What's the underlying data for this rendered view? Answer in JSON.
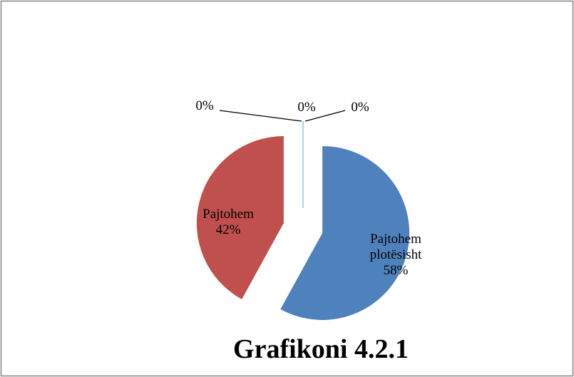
{
  "chart_data": {
    "type": "pie",
    "title": "Grafikoni 4.2.1",
    "categories": [
      "Pajtohem plotësisht",
      "Pajtohem",
      null,
      null,
      null
    ],
    "values": [
      58,
      42,
      0,
      0,
      0
    ],
    "value_labels": [
      "58%",
      "42%",
      "0%",
      "0%",
      "0%"
    ],
    "colors": [
      "#4f81bd",
      "#c0504d",
      "#9bbb59",
      "#8064a2",
      "#4bacc6"
    ]
  }
}
